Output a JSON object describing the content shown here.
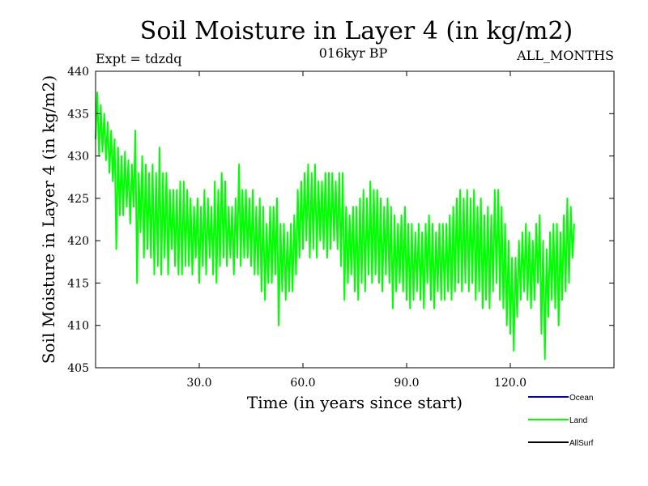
{
  "chart_data": {
    "type": "line",
    "title": "Soil Moisture in Layer 4 (in kg/m2)",
    "subtitle": "016kyr BP",
    "left_note": "Expt = tdzdq",
    "right_note": "ALL_MONTHS",
    "xlabel": "Time (in years since start)",
    "ylabel": "Soil Moisture in Layer 4 (in kg/m2)",
    "xlim": [
      0,
      150
    ],
    "ylim": [
      405,
      440
    ],
    "x_ticks": [
      30,
      60,
      90,
      120
    ],
    "x_tick_labels": [
      "30.0",
      "60.0",
      "90.0",
      "120.0"
    ],
    "y_ticks": [
      405,
      410,
      415,
      420,
      425,
      430,
      435,
      440
    ],
    "y_tick_labels": [
      "405",
      "410",
      "415",
      "420",
      "425",
      "430",
      "435",
      "440"
    ],
    "legend_position": "bottom-right",
    "series": [
      {
        "name": "Ocean",
        "color": "#0000cc",
        "values": []
      },
      {
        "name": "Land",
        "color": "#00ff00",
        "sampling": "monthly",
        "x_start": 0,
        "x_step": 0.5,
        "values": [
          432.0,
          437.5,
          430.0,
          436.0,
          430.5,
          435.0,
          429.5,
          434.0,
          428.0,
          433.0,
          427.0,
          432.0,
          419.0,
          431.0,
          423.0,
          430.0,
          423.0,
          430.5,
          424.0,
          429.5,
          422.0,
          429.0,
          424.0,
          433.0,
          415.0,
          428.0,
          421.0,
          430.0,
          418.0,
          429.0,
          419.0,
          428.0,
          418.0,
          429.0,
          416.0,
          428.0,
          417.0,
          431.0,
          416.0,
          428.0,
          418.0,
          428.0,
          416.0,
          426.0,
          419.0,
          426.0,
          417.0,
          426.0,
          416.0,
          427.0,
          416.0,
          427.0,
          417.0,
          426.0,
          417.0,
          425.0,
          416.0,
          424.0,
          418.0,
          425.0,
          415.0,
          424.0,
          417.0,
          426.0,
          416.0,
          425.0,
          418.0,
          424.0,
          416.0,
          427.0,
          415.0,
          426.0,
          417.0,
          428.0,
          418.0,
          427.0,
          417.0,
          424.0,
          418.0,
          424.0,
          416.0,
          425.0,
          418.0,
          429.0,
          417.0,
          426.0,
          418.0,
          426.0,
          418.0,
          425.0,
          417.0,
          426.0,
          416.0,
          424.0,
          416.0,
          425.0,
          414.0,
          424.0,
          413.0,
          422.0,
          415.0,
          424.0,
          415.0,
          424.0,
          416.0,
          425.0,
          410.0,
          422.0,
          414.0,
          422.0,
          413.0,
          421.0,
          414.0,
          422.0,
          414.0,
          423.0,
          416.0,
          426.0,
          418.0,
          427.0,
          419.0,
          428.0,
          420.0,
          429.0,
          418.0,
          428.0,
          419.0,
          429.0,
          418.0,
          427.0,
          420.0,
          427.0,
          419.0,
          428.0,
          418.0,
          428.0,
          419.0,
          428.0,
          420.0,
          427.0,
          419.0,
          428.0,
          417.0,
          428.0,
          413.0,
          424.0,
          415.0,
          423.0,
          416.0,
          424.0,
          414.0,
          424.0,
          413.0,
          425.0,
          415.0,
          426.0,
          414.0,
          425.0,
          416.0,
          427.0,
          415.0,
          426.0,
          416.0,
          426.0,
          415.0,
          425.0,
          414.0,
          424.0,
          416.0,
          425.0,
          415.0,
          424.0,
          412.0,
          423.0,
          414.0,
          422.0,
          415.0,
          423.0,
          414.0,
          424.0,
          413.0,
          422.0,
          412.0,
          422.0,
          413.0,
          421.0,
          414.0,
          422.0,
          413.0,
          421.0,
          412.0,
          422.0,
          415.0,
          423.0,
          413.0,
          422.0,
          412.0,
          421.0,
          414.0,
          422.0,
          413.0,
          422.0,
          413.0,
          422.0,
          414.0,
          423.0,
          413.0,
          424.0,
          414.0,
          425.0,
          415.0,
          426.0,
          414.0,
          425.0,
          415.0,
          426.0,
          414.0,
          425.0,
          415.0,
          426.0,
          413.0,
          424.0,
          414.0,
          425.0,
          412.0,
          423.0,
          413.0,
          424.0,
          412.0,
          423.0,
          414.0,
          426.0,
          415.0,
          426.0,
          413.0,
          424.0,
          412.0,
          422.0,
          410.0,
          420.0,
          409.0,
          418.0,
          407.0,
          418.0,
          411.0,
          420.0,
          413.0,
          421.0,
          414.0,
          422.0,
          413.0,
          421.0,
          412.0,
          420.0,
          413.0,
          422.0,
          415.0,
          423.0,
          409.0,
          420.0,
          406.0,
          419.0,
          411.0,
          421.0,
          413.0,
          422.0,
          412.0,
          422.0,
          410.0,
          421.0,
          413.0,
          423.0,
          414.0,
          425.0,
          415.0,
          424.0,
          418.0,
          422.0
        ]
      },
      {
        "name": "AllSurf",
        "color": "#000000",
        "values": []
      }
    ]
  }
}
